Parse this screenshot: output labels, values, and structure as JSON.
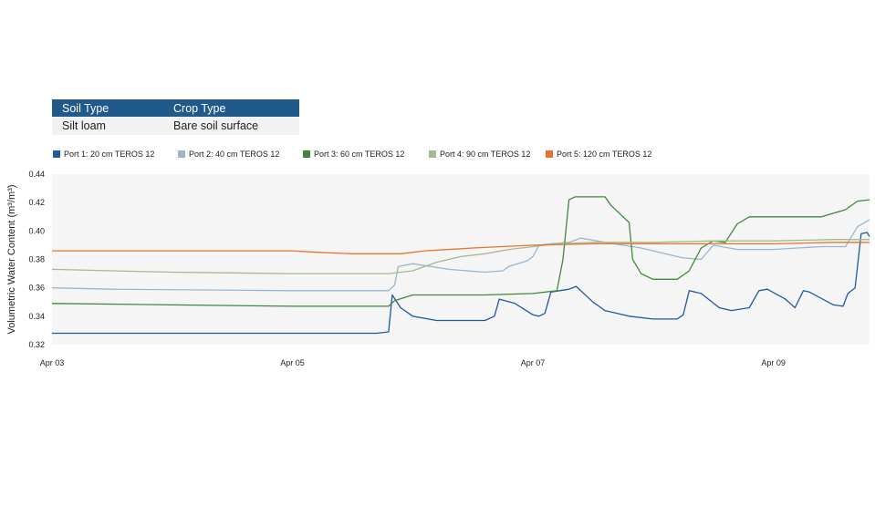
{
  "table": {
    "headers": [
      "Soil Type",
      "Crop Type"
    ],
    "rows": [
      [
        "Silt loam",
        "Bare soil surface"
      ]
    ]
  },
  "chart_data": {
    "type": "line",
    "title": "",
    "xlabel": "",
    "ylabel": "Volumetric Water Content (m³/m³)",
    "x_tick_labels": [
      "Apr 03",
      "Apr 05",
      "Apr 07",
      "Apr 09"
    ],
    "x_tick_days": [
      0,
      2,
      4,
      6
    ],
    "xlim_days": [
      0,
      6.8
    ],
    "ylim": [
      0.32,
      0.44
    ],
    "y_ticks": [
      0.32,
      0.34,
      0.36,
      0.38,
      0.4,
      0.42,
      0.44
    ],
    "grid": false,
    "legend_position": "top",
    "series": [
      {
        "name": "Port 1: 20 cm TEROS 12",
        "color": "#1f5a9e",
        "points": [
          [
            0,
            0.328
          ],
          [
            1,
            0.328
          ],
          [
            2,
            0.328
          ],
          [
            2.7,
            0.328
          ],
          [
            2.8,
            0.329
          ],
          [
            2.83,
            0.355
          ],
          [
            2.9,
            0.346
          ],
          [
            3.0,
            0.34
          ],
          [
            3.2,
            0.337
          ],
          [
            3.6,
            0.337
          ],
          [
            3.68,
            0.34
          ],
          [
            3.72,
            0.352
          ],
          [
            3.85,
            0.349
          ],
          [
            4.0,
            0.341
          ],
          [
            4.05,
            0.34
          ],
          [
            4.1,
            0.342
          ],
          [
            4.15,
            0.357
          ],
          [
            4.3,
            0.359
          ],
          [
            4.36,
            0.361
          ],
          [
            4.5,
            0.35
          ],
          [
            4.6,
            0.344
          ],
          [
            4.8,
            0.34
          ],
          [
            5.0,
            0.338
          ],
          [
            5.2,
            0.338
          ],
          [
            5.25,
            0.341
          ],
          [
            5.3,
            0.358
          ],
          [
            5.4,
            0.356
          ],
          [
            5.55,
            0.346
          ],
          [
            5.65,
            0.344
          ],
          [
            5.8,
            0.346
          ],
          [
            5.88,
            0.358
          ],
          [
            5.95,
            0.359
          ],
          [
            6.1,
            0.352
          ],
          [
            6.18,
            0.346
          ],
          [
            6.25,
            0.358
          ],
          [
            6.3,
            0.357
          ],
          [
            6.5,
            0.348
          ],
          [
            6.58,
            0.347
          ],
          [
            6.62,
            0.356
          ],
          [
            6.68,
            0.36
          ],
          [
            6.73,
            0.398
          ],
          [
            6.78,
            0.399
          ],
          [
            6.8,
            0.396
          ]
        ]
      },
      {
        "name": "Port 2: 40 cm TEROS 12",
        "color": "#9ab6cf",
        "points": [
          [
            0,
            0.36
          ],
          [
            0.5,
            0.359
          ],
          [
            2,
            0.358
          ],
          [
            2.8,
            0.358
          ],
          [
            2.85,
            0.362
          ],
          [
            2.88,
            0.375
          ],
          [
            3.0,
            0.377
          ],
          [
            3.3,
            0.373
          ],
          [
            3.6,
            0.371
          ],
          [
            3.75,
            0.372
          ],
          [
            3.8,
            0.375
          ],
          [
            3.95,
            0.379
          ],
          [
            4.0,
            0.382
          ],
          [
            4.05,
            0.39
          ],
          [
            4.15,
            0.391
          ],
          [
            4.3,
            0.392
          ],
          [
            4.4,
            0.395
          ],
          [
            4.6,
            0.392
          ],
          [
            4.9,
            0.388
          ],
          [
            5.1,
            0.384
          ],
          [
            5.25,
            0.381
          ],
          [
            5.4,
            0.38
          ],
          [
            5.5,
            0.39
          ],
          [
            5.7,
            0.387
          ],
          [
            6.0,
            0.387
          ],
          [
            6.2,
            0.388
          ],
          [
            6.4,
            0.389
          ],
          [
            6.6,
            0.389
          ],
          [
            6.7,
            0.403
          ],
          [
            6.8,
            0.408
          ]
        ]
      },
      {
        "name": "Port 3: 60 cm TEROS 12",
        "color": "#3e8a3a",
        "points": [
          [
            0,
            0.349
          ],
          [
            1,
            0.348
          ],
          [
            2,
            0.347
          ],
          [
            2.8,
            0.347
          ],
          [
            2.85,
            0.351
          ],
          [
            3.0,
            0.355
          ],
          [
            3.6,
            0.355
          ],
          [
            4.0,
            0.356
          ],
          [
            4.2,
            0.358
          ],
          [
            4.25,
            0.38
          ],
          [
            4.3,
            0.422
          ],
          [
            4.35,
            0.424
          ],
          [
            4.6,
            0.424
          ],
          [
            4.65,
            0.418
          ],
          [
            4.75,
            0.41
          ],
          [
            4.8,
            0.406
          ],
          [
            4.83,
            0.38
          ],
          [
            4.9,
            0.37
          ],
          [
            5.0,
            0.366
          ],
          [
            5.2,
            0.366
          ],
          [
            5.3,
            0.372
          ],
          [
            5.4,
            0.388
          ],
          [
            5.5,
            0.393
          ],
          [
            5.6,
            0.392
          ],
          [
            5.7,
            0.405
          ],
          [
            5.8,
            0.41
          ],
          [
            6.0,
            0.41
          ],
          [
            6.4,
            0.41
          ],
          [
            6.6,
            0.415
          ],
          [
            6.7,
            0.421
          ],
          [
            6.8,
            0.422
          ]
        ]
      },
      {
        "name": "Port 4: 90 cm TEROS 12",
        "color": "#a2bb8e",
        "points": [
          [
            0,
            0.373
          ],
          [
            0.5,
            0.372
          ],
          [
            1,
            0.371
          ],
          [
            2,
            0.37
          ],
          [
            2.8,
            0.37
          ],
          [
            3.0,
            0.372
          ],
          [
            3.2,
            0.378
          ],
          [
            3.4,
            0.382
          ],
          [
            3.6,
            0.384
          ],
          [
            3.8,
            0.387
          ],
          [
            4.0,
            0.389
          ],
          [
            4.2,
            0.391
          ],
          [
            4.5,
            0.392
          ],
          [
            5.0,
            0.392
          ],
          [
            5.5,
            0.393
          ],
          [
            6.0,
            0.393
          ],
          [
            6.5,
            0.394
          ],
          [
            6.8,
            0.394
          ]
        ]
      },
      {
        "name": "Port 5: 120 cm TEROS 12",
        "color": "#e8732a",
        "points": [
          [
            0,
            0.386
          ],
          [
            1,
            0.386
          ],
          [
            2,
            0.386
          ],
          [
            2.2,
            0.385
          ],
          [
            2.5,
            0.384
          ],
          [
            2.9,
            0.384
          ],
          [
            3.1,
            0.386
          ],
          [
            3.5,
            0.388
          ],
          [
            4.0,
            0.39
          ],
          [
            4.5,
            0.391
          ],
          [
            5.0,
            0.391
          ],
          [
            5.5,
            0.391
          ],
          [
            6.0,
            0.391
          ],
          [
            6.5,
            0.392
          ],
          [
            6.8,
            0.392
          ]
        ]
      }
    ]
  }
}
